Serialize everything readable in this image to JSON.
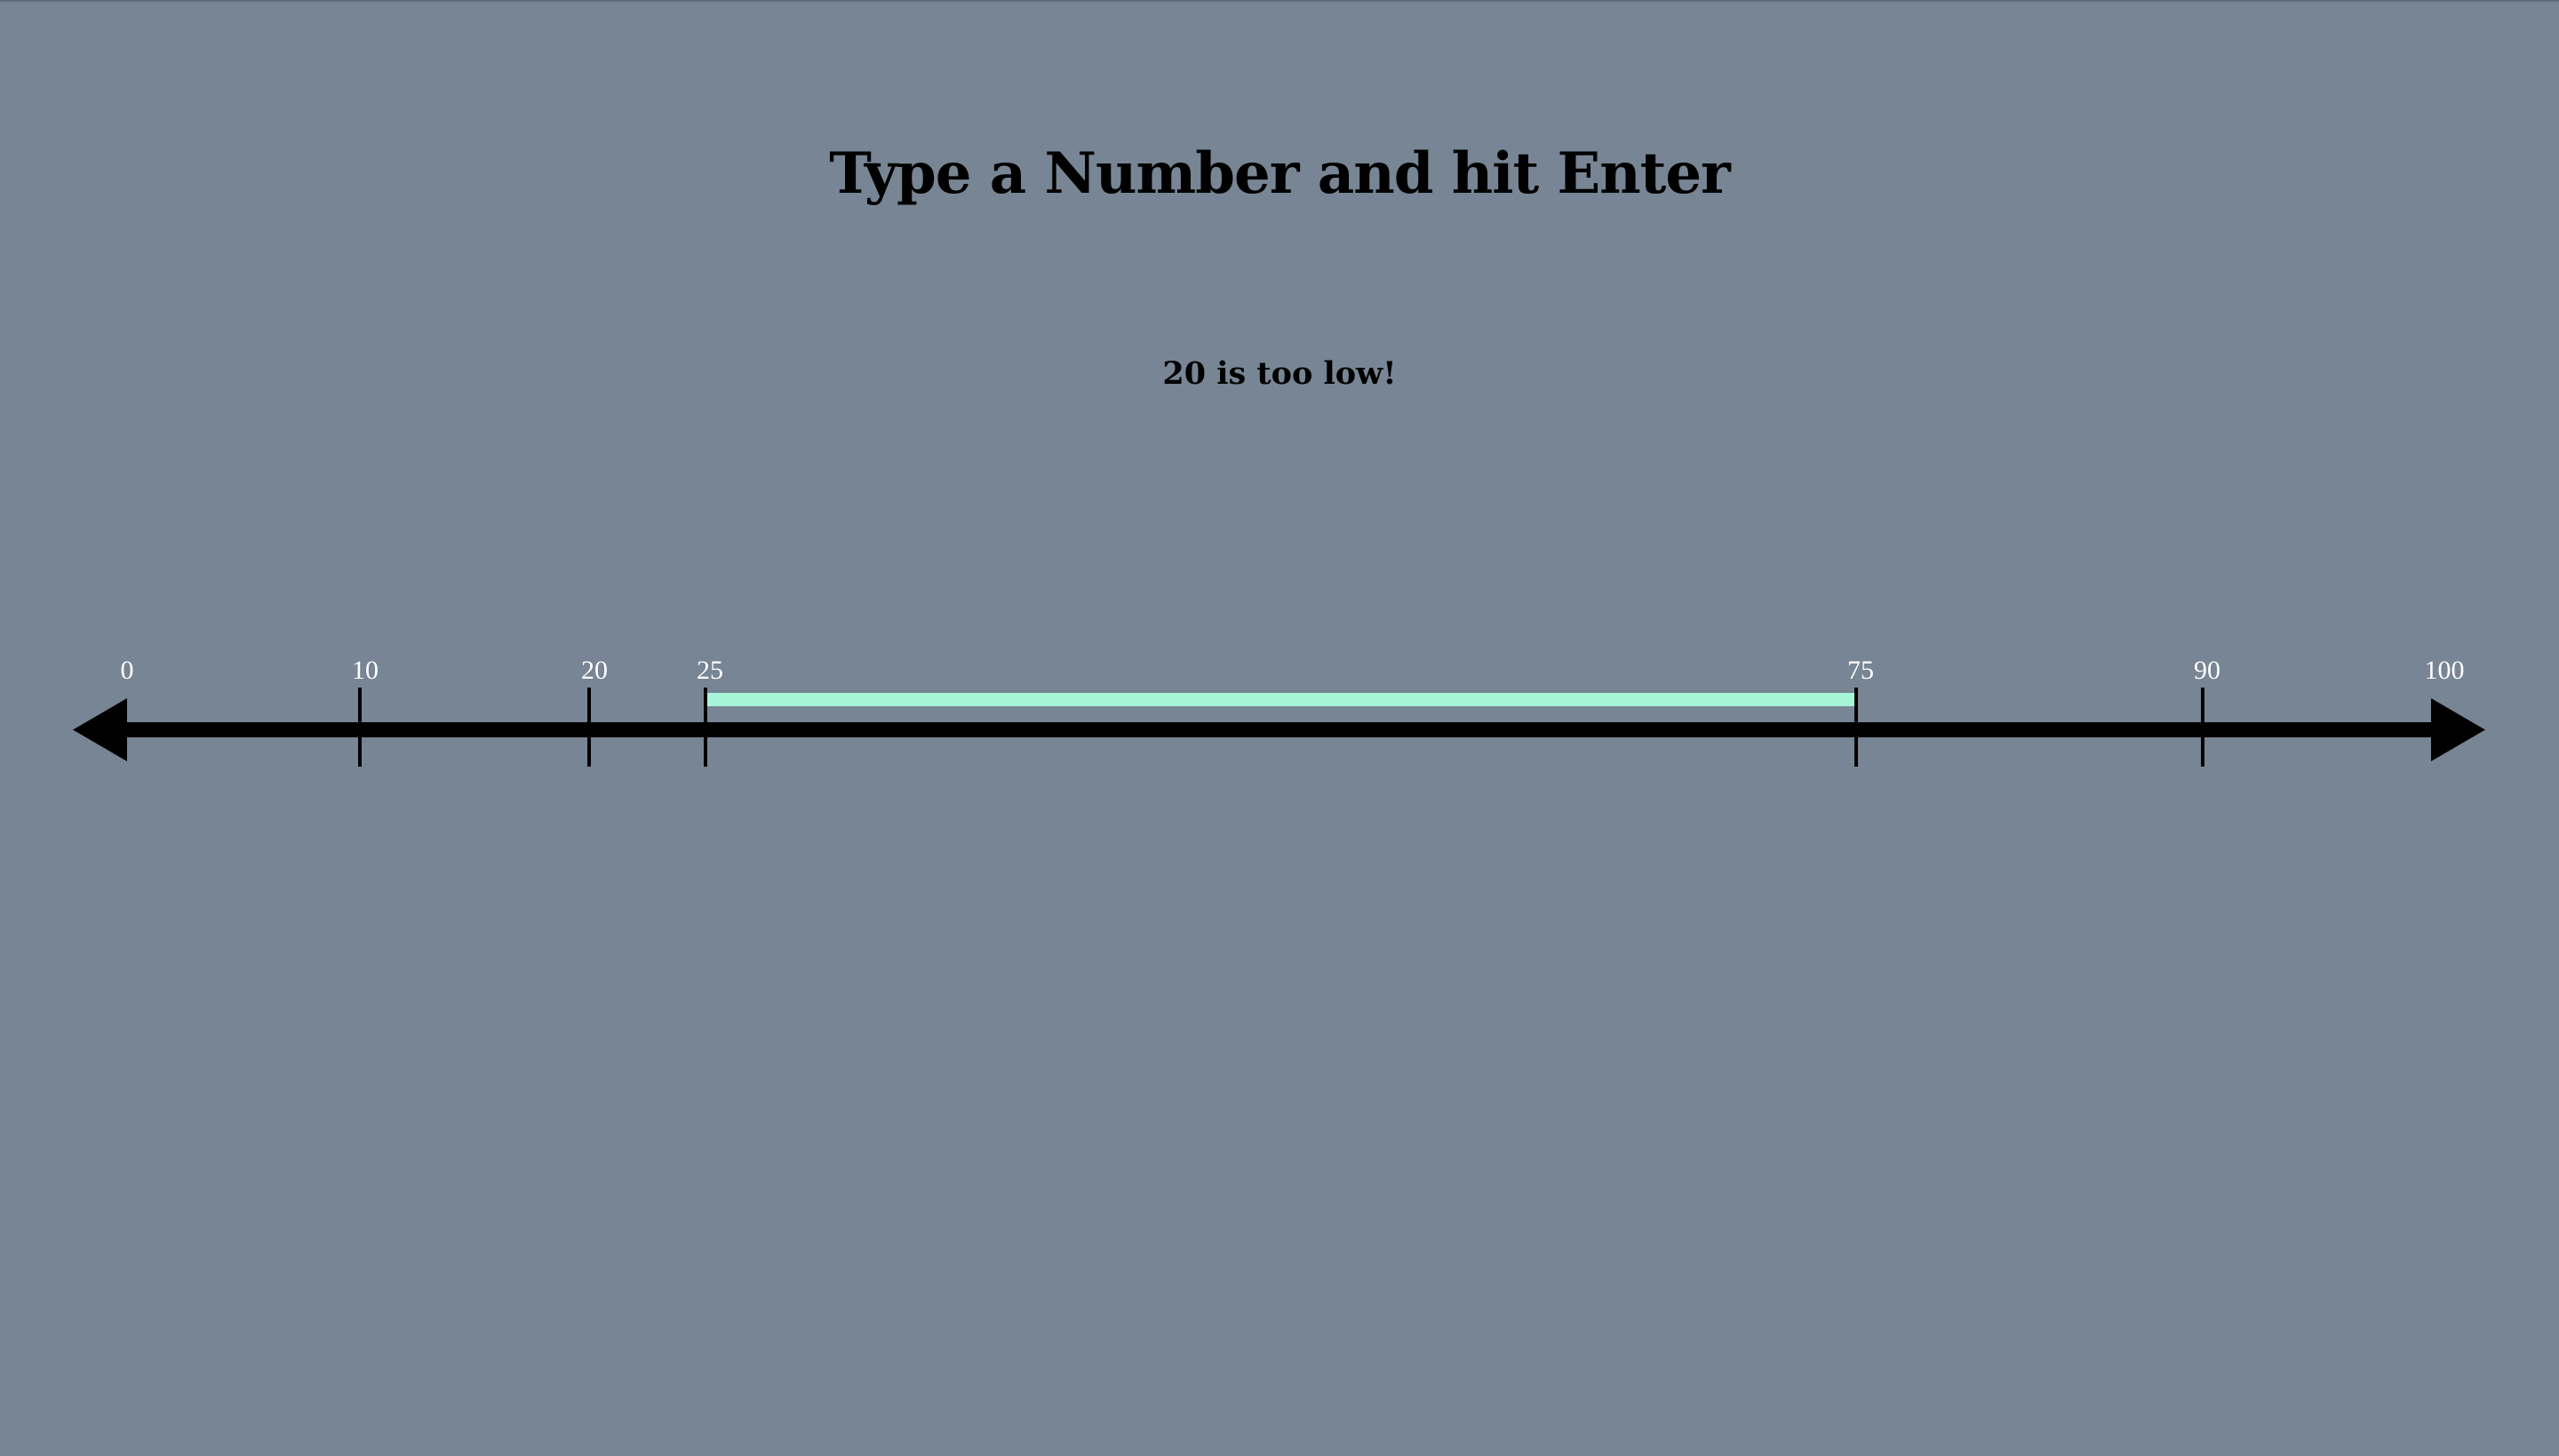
{
  "page": {
    "title": "Type a Number and hit Enter",
    "feedback": "20 is too low!"
  },
  "number_line": {
    "range": [
      0,
      100
    ],
    "tick_labels": [
      "0",
      "10",
      "20",
      "25",
      "75",
      "90",
      "100"
    ],
    "highlight_range": [
      25,
      75
    ],
    "colors": {
      "background": "#778594",
      "line": "#000000",
      "highlight": "#a6f5d8",
      "label": "#ffffff"
    }
  }
}
